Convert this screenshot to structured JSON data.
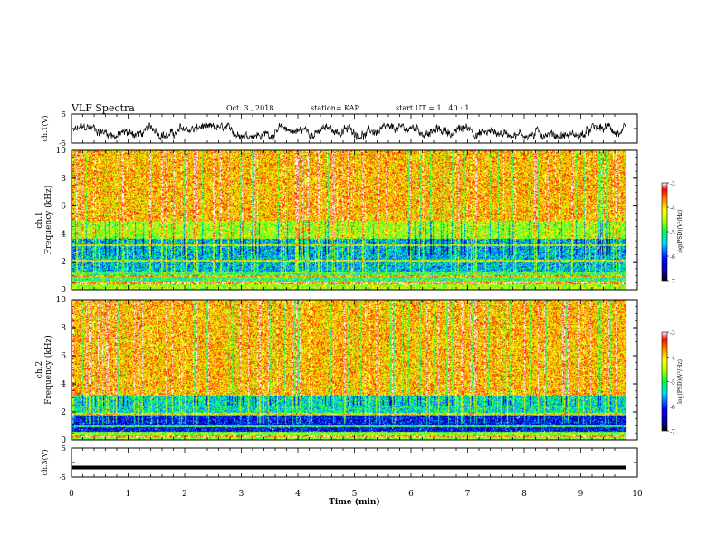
{
  "header": {
    "title": "VLF Spectra",
    "date": "Oct. 3 , 2018",
    "station": "station= KAP",
    "start": "start UT = 1 : 40 : 1"
  },
  "chart_data": [
    {
      "type": "line",
      "panel": "ch1-waveform",
      "ylabel": "ch.1(V)",
      "ylim": [
        -5,
        5
      ],
      "yticks": [
        "5",
        "-5"
      ],
      "xlim": [
        0,
        10
      ],
      "x_unit": "min",
      "description_values": {
        "approx_range_V": [
          -3,
          1
        ],
        "x_end_min": 9.8
      }
    },
    {
      "type": "heatmap",
      "panel": "ch1-spectrogram",
      "ylabel": "ch.1\nFrequency (kHz)",
      "ylabel_line1": "ch.1",
      "ylabel_line2": "Frequency (kHz)",
      "ylim": [
        0,
        10
      ],
      "yticks": [
        "0",
        "2",
        "4",
        "6",
        "8",
        "10"
      ],
      "xlim": [
        0,
        10
      ],
      "x_end_min": 9.8,
      "colorbar": {
        "label": "log(PSD)(V²/Hz)",
        "range": [
          -7,
          -3
        ],
        "ticks": [
          "-3",
          "-4",
          "-5",
          "-6",
          "-7"
        ]
      },
      "bands_kHz": [
        {
          "from": 0,
          "to": 0.6,
          "level": -4.5
        },
        {
          "from": 0.6,
          "to": 1.3,
          "level": -5.0
        },
        {
          "from": 1.3,
          "to": 3.7,
          "level": -5.5
        },
        {
          "from": 3.7,
          "to": 5.0,
          "level": -4.5
        },
        {
          "from": 5.0,
          "to": 10,
          "level": -3.9
        }
      ],
      "lines_kHz": [
        0.5,
        1.0,
        2.1,
        3.2
      ]
    },
    {
      "type": "heatmap",
      "panel": "ch2-spectrogram",
      "ylabel": "ch.2\nFrequency (kHz)",
      "ylabel_line1": "ch.2",
      "ylabel_line2": "Frequency (kHz)",
      "ylim": [
        0,
        10
      ],
      "yticks": [
        "0",
        "2",
        "4",
        "6",
        "8",
        "10"
      ],
      "xlim": [
        0,
        10
      ],
      "x_end_min": 9.8,
      "colorbar": {
        "label": "log(PSD)(V²/Hz)",
        "range": [
          -7,
          -3
        ],
        "ticks": [
          "-3",
          "-4",
          "-5",
          "-6",
          "-7"
        ]
      },
      "bands_kHz": [
        {
          "from": 0,
          "to": 0.6,
          "level": -4.6
        },
        {
          "from": 0.6,
          "to": 1.8,
          "level": -6.2
        },
        {
          "from": 1.8,
          "to": 3.2,
          "level": -5.3
        },
        {
          "from": 3.2,
          "to": 10,
          "level": -3.9
        }
      ],
      "lines_kHz": [
        0.3,
        1.0,
        1.9
      ]
    },
    {
      "type": "line",
      "panel": "ch3-waveform",
      "ylabel": "ch.3(V)",
      "ylim": [
        -5,
        5
      ],
      "yticks": [
        "5",
        "-5"
      ],
      "xlim": [
        0,
        10
      ],
      "xticks": [
        "0",
        "1",
        "2",
        "3",
        "4",
        "5",
        "6",
        "7",
        "8",
        "9",
        "10"
      ],
      "xlabel": "Time (min)",
      "values": {
        "constant_V": -1.7
      },
      "x_end_min": 9.8
    }
  ]
}
